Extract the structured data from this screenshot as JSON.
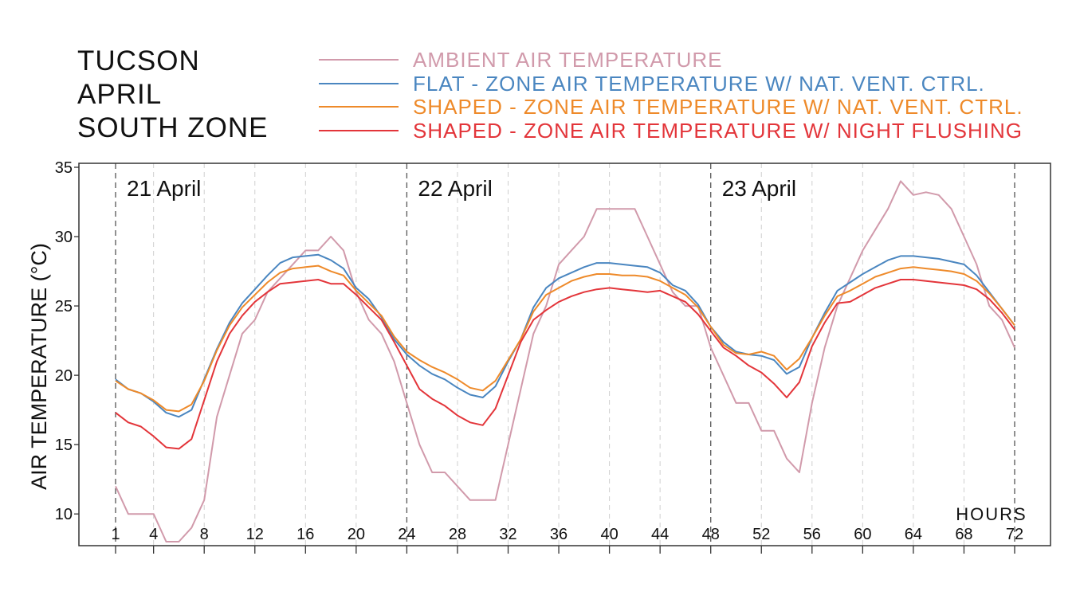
{
  "title_lines": [
    "TUCSON",
    "APRIL",
    "SOUTH ZONE"
  ],
  "colors": {
    "ambient": "#d19aab",
    "flat": "#4a86c0",
    "shaped_nv": "#ee8a2a",
    "shaped_nf": "#e3353a",
    "axis": "#333333",
    "grid": "#cfcfcf",
    "day_line": "#555555"
  },
  "chart_data": {
    "type": "line",
    "title": "",
    "xlabel": "HOURS",
    "ylabel": "AIR TEMPERATURE (°C)",
    "xlim": [
      1,
      72
    ],
    "ylim": [
      8,
      35
    ],
    "x_ticks": [
      1,
      4,
      8,
      12,
      16,
      20,
      24,
      28,
      32,
      36,
      40,
      44,
      48,
      52,
      56,
      60,
      64,
      68,
      72
    ],
    "y_ticks": [
      10,
      15,
      20,
      25,
      30,
      35
    ],
    "day_boundaries": [
      1,
      24,
      48,
      72
    ],
    "annotations": [
      {
        "text": "21 April",
        "x": 1
      },
      {
        "text": "22 April",
        "x": 24
      },
      {
        "text": "23 April",
        "x": 48
      }
    ],
    "x": [
      1,
      2,
      3,
      4,
      5,
      6,
      7,
      8,
      9,
      10,
      11,
      12,
      13,
      14,
      15,
      16,
      17,
      18,
      19,
      20,
      21,
      22,
      23,
      24,
      25,
      26,
      27,
      28,
      29,
      30,
      31,
      32,
      33,
      34,
      35,
      36,
      37,
      38,
      39,
      40,
      41,
      42,
      43,
      44,
      45,
      46,
      47,
      48,
      49,
      50,
      51,
      52,
      53,
      54,
      55,
      56,
      57,
      58,
      59,
      60,
      61,
      62,
      63,
      64,
      65,
      66,
      67,
      68,
      69,
      70,
      71,
      72
    ],
    "series": [
      {
        "name": "AMBIENT AIR TEMPERATURE",
        "color_key": "ambient",
        "values": [
          12,
          10,
          10,
          10,
          8,
          8,
          9,
          11,
          17,
          20,
          23,
          24,
          26,
          27,
          28,
          29,
          29,
          30,
          29,
          26,
          24,
          23,
          21,
          18,
          15,
          13,
          13,
          12,
          11,
          11,
          11,
          15,
          19,
          23,
          25,
          28,
          29,
          30,
          32,
          32,
          32,
          32,
          30,
          28,
          26,
          25,
          25,
          22,
          20,
          18,
          18,
          16,
          16,
          14,
          13,
          18,
          22,
          25,
          27,
          29,
          30.5,
          32,
          34,
          33,
          33.2,
          33,
          32,
          30,
          28,
          25,
          24,
          22
        ]
      },
      {
        "name": "FLAT - ZONE AIR TEMPERATURE W/ NAT. VENT. CTRL.",
        "color_key": "flat",
        "values": [
          19.7,
          19.0,
          18.7,
          18.1,
          17.3,
          17.0,
          17.5,
          19.7,
          21.9,
          23.8,
          25.2,
          26.2,
          27.2,
          28.1,
          28.5,
          28.6,
          28.7,
          28.3,
          27.7,
          26.3,
          25.5,
          24.2,
          22.6,
          21.5,
          20.7,
          20.1,
          19.7,
          19.1,
          18.6,
          18.4,
          19.2,
          21.0,
          22.6,
          24.9,
          26.3,
          27.0,
          27.4,
          27.8,
          28.1,
          28.1,
          28.0,
          27.9,
          27.8,
          27.4,
          26.5,
          26.1,
          25.1,
          23.5,
          22.4,
          21.7,
          21.5,
          21.4,
          21.1,
          20.1,
          20.6,
          22.7,
          24.5,
          26.1,
          26.7,
          27.3,
          27.8,
          28.3,
          28.6,
          28.6,
          28.5,
          28.4,
          28.2,
          28.0,
          27.2,
          26.0,
          24.8,
          23.6
        ]
      },
      {
        "name": "SHAPED - ZONE AIR TEMPERATURE W/ NAT. VENT. CTRL.",
        "color_key": "shaped_nv",
        "values": [
          19.6,
          19.0,
          18.7,
          18.2,
          17.5,
          17.4,
          17.9,
          19.6,
          21.8,
          23.6,
          24.9,
          25.8,
          26.7,
          27.4,
          27.7,
          27.8,
          27.9,
          27.5,
          27.2,
          26.1,
          25.2,
          24.3,
          22.8,
          21.7,
          21.1,
          20.6,
          20.2,
          19.7,
          19.1,
          18.9,
          19.6,
          21.1,
          22.6,
          24.6,
          25.8,
          26.3,
          26.8,
          27.1,
          27.3,
          27.3,
          27.2,
          27.2,
          27.1,
          26.8,
          26.3,
          25.8,
          24.9,
          23.5,
          22.2,
          21.6,
          21.5,
          21.7,
          21.4,
          20.4,
          21.2,
          22.7,
          24.3,
          25.7,
          26.1,
          26.6,
          27.1,
          27.4,
          27.7,
          27.8,
          27.7,
          27.6,
          27.5,
          27.3,
          26.8,
          25.9,
          24.8,
          23.6
        ]
      },
      {
        "name": "SHAPED - ZONE AIR TEMPERATURE W/ NIGHT FLUSHING",
        "color_key": "shaped_nf",
        "values": [
          17.3,
          16.6,
          16.3,
          15.6,
          14.8,
          14.7,
          15.4,
          18.2,
          21.0,
          23.0,
          24.3,
          25.3,
          26.0,
          26.6,
          26.7,
          26.8,
          26.9,
          26.6,
          26.6,
          25.8,
          24.9,
          24.0,
          22.4,
          20.7,
          19.0,
          18.3,
          17.8,
          17.1,
          16.6,
          16.4,
          17.6,
          20.0,
          22.4,
          24.0,
          24.7,
          25.3,
          25.7,
          26.0,
          26.2,
          26.3,
          26.2,
          26.1,
          26.0,
          26.1,
          25.7,
          25.3,
          24.4,
          23.2,
          22.0,
          21.4,
          20.7,
          20.2,
          19.4,
          18.4,
          19.5,
          22.1,
          23.8,
          25.2,
          25.3,
          25.8,
          26.3,
          26.6,
          26.9,
          26.9,
          26.8,
          26.7,
          26.6,
          26.5,
          26.2,
          25.5,
          24.5,
          23.3
        ]
      }
    ]
  }
}
